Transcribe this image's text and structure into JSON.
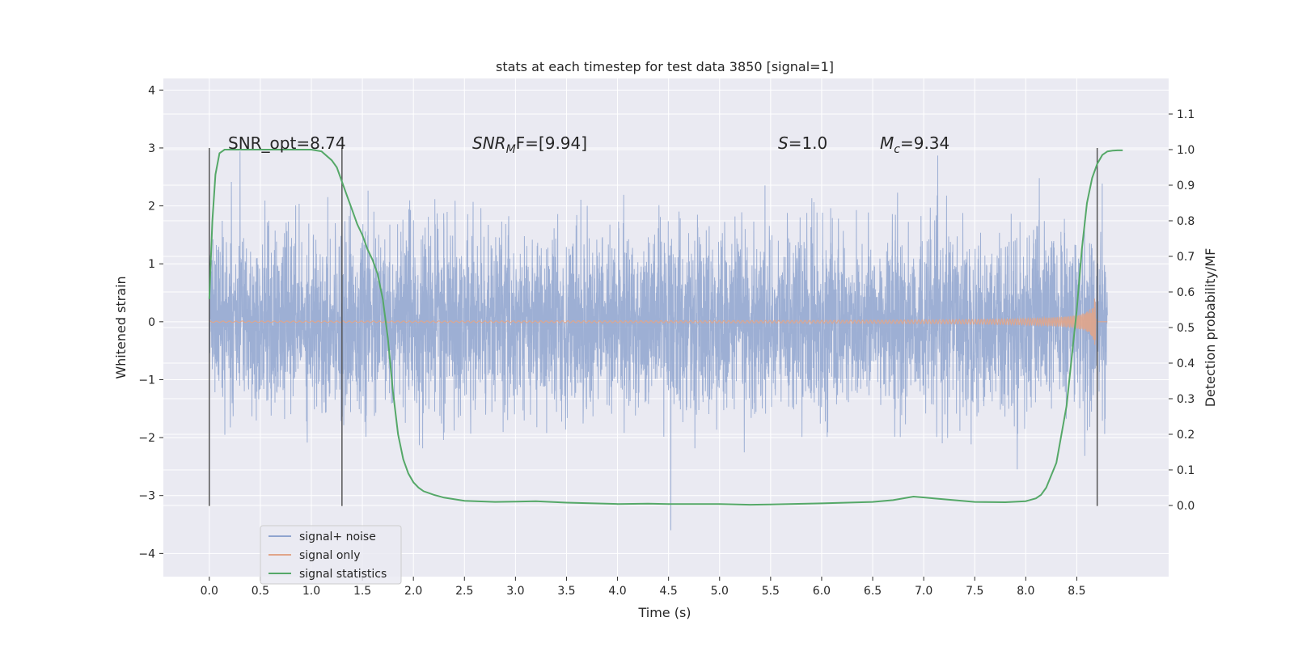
{
  "chart_data": {
    "type": "line",
    "title": "stats at each timestep for test data 3850 [signal=1]",
    "xlabel": "Time (s)",
    "ylabel_left": "Whitened strain",
    "ylabel_right": "Detection probability/MF",
    "xlim": [
      -0.45,
      9.4
    ],
    "ylim_left": [
      -4.4,
      4.2
    ],
    "ylim_right": [
      -0.2,
      1.2
    ],
    "x_ticks": [
      0.0,
      0.5,
      1.0,
      1.5,
      2.0,
      2.5,
      3.0,
      3.5,
      4.0,
      4.5,
      5.0,
      5.5,
      6.0,
      6.5,
      7.0,
      7.5,
      8.0,
      8.5
    ],
    "x_tick_labels": [
      "0.0",
      "0.5",
      "1.0",
      "1.5",
      "2.0",
      "2.5",
      "3.0",
      "3.5",
      "4.0",
      "4.5",
      "5.0",
      "5.5",
      "6.0",
      "6.5",
      "7.0",
      "7.5",
      "8.0",
      "8.5"
    ],
    "y_left_ticks": [
      4,
      3,
      2,
      1,
      0,
      -1,
      -2,
      -3,
      -4
    ],
    "y_left_tick_labels": [
      "4",
      "3",
      "2",
      "1",
      "0",
      "−1",
      "−2",
      "−3",
      "−4"
    ],
    "y_right_ticks": [
      1.1,
      1.0,
      0.9,
      0.8,
      0.7,
      0.6,
      0.5,
      0.4,
      0.3,
      0.2,
      0.1,
      0.0
    ],
    "y_right_tick_labels": [
      "1.1",
      "1.0",
      "0.9",
      "0.8",
      "0.7",
      "0.6",
      "0.5",
      "0.4",
      "0.3",
      "0.2",
      "0.1",
      "0.0"
    ],
    "noise_time_range": [
      0.0,
      8.8
    ],
    "noise_std": 0.75,
    "chirp_end": 8.7,
    "vertical_markers": [
      0.0,
      1.3,
      8.7
    ],
    "annotations": {
      "snr_opt": "SNR_opt=8.74",
      "snr_mf_base": "SNR",
      "snr_mf_sub": "M",
      "snr_mf_tail": "F=[9.94]",
      "s_base": "S",
      "s_tail": "=1.0",
      "mc_base": "M",
      "mc_sub": "c",
      "mc_tail": "=9.34"
    },
    "series": [
      {
        "name": "signal+ noise",
        "color": "#8fa4cf"
      },
      {
        "name": "signal only",
        "color": "#e1a58a"
      },
      {
        "name": "signal statistics",
        "color": "#55a868",
        "x": [
          0.0,
          0.03,
          0.06,
          0.1,
          0.15,
          0.2,
          0.3,
          0.5,
          0.8,
          1.0,
          1.1,
          1.2,
          1.25,
          1.3,
          1.35,
          1.4,
          1.45,
          1.5,
          1.55,
          1.6,
          1.65,
          1.7,
          1.75,
          1.8,
          1.85,
          1.9,
          1.95,
          2.0,
          2.05,
          2.1,
          2.2,
          2.3,
          2.5,
          2.8,
          3.0,
          3.2,
          3.5,
          4.0,
          4.3,
          4.5,
          5.0,
          5.3,
          5.5,
          6.0,
          6.5,
          6.7,
          6.9,
          7.1,
          7.5,
          7.8,
          8.0,
          8.1,
          8.15,
          8.2,
          8.3,
          8.4,
          8.5,
          8.55,
          8.6,
          8.65,
          8.7,
          8.75,
          8.8,
          8.85,
          8.9,
          8.95
        ],
        "y": [
          0.58,
          0.8,
          0.93,
          0.99,
          1.0,
          1.0,
          1.0,
          1.0,
          1.0,
          1.0,
          0.995,
          0.97,
          0.95,
          0.91,
          0.87,
          0.83,
          0.79,
          0.76,
          0.72,
          0.69,
          0.65,
          0.58,
          0.47,
          0.32,
          0.2,
          0.13,
          0.09,
          0.065,
          0.05,
          0.04,
          0.03,
          0.022,
          0.013,
          0.01,
          0.011,
          0.012,
          0.008,
          0.004,
          0.005,
          0.004,
          0.004,
          0.002,
          0.003,
          0.006,
          0.01,
          0.015,
          0.025,
          0.02,
          0.01,
          0.009,
          0.012,
          0.02,
          0.03,
          0.05,
          0.12,
          0.28,
          0.55,
          0.72,
          0.85,
          0.92,
          0.96,
          0.985,
          0.995,
          0.997,
          0.998,
          0.998
        ]
      }
    ],
    "legend_position": "lower-left"
  }
}
